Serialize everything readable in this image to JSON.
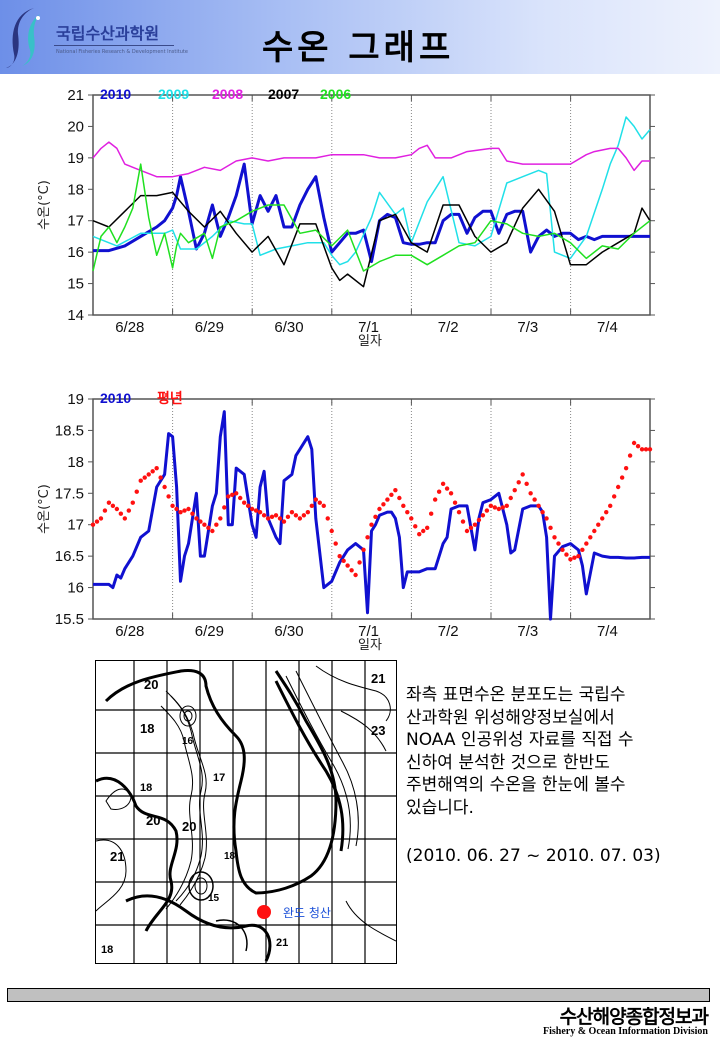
{
  "header": {
    "org_name": "국립수산과학원",
    "org_subtitle": "National Fisheries Research & Development Institute",
    "title": "수온 그래프"
  },
  "chart_data": [
    {
      "type": "line",
      "title": "",
      "xlabel": "일자",
      "ylabel": "수온(°C)",
      "ylim": [
        14,
        21
      ],
      "yticks": [
        "14",
        "15",
        "16",
        "17",
        "18",
        "19",
        "20",
        "21"
      ],
      "x_tick_labels": [
        "6/28",
        "6/29",
        "6/30",
        "7/1",
        "7/2",
        "7/3",
        "7/4"
      ],
      "xlim": [
        0,
        7
      ],
      "grid": "vertical dotted at day boundaries",
      "legend_position": "top",
      "series": [
        {
          "name": "2010",
          "color": "#1010d0",
          "width": 3,
          "x": [
            0,
            0.2,
            0.4,
            0.6,
            0.8,
            0.9,
            1.0,
            1.05,
            1.1,
            1.2,
            1.3,
            1.4,
            1.5,
            1.6,
            1.7,
            1.8,
            1.9,
            2.0,
            2.1,
            2.2,
            2.3,
            2.4,
            2.5,
            2.6,
            2.7,
            2.8,
            2.9,
            3.0,
            3.1,
            3.2,
            3.3,
            3.4,
            3.5,
            3.6,
            3.7,
            3.8,
            3.9,
            4.0,
            4.1,
            4.2,
            4.3,
            4.4,
            4.5,
            4.6,
            4.7,
            4.8,
            4.9,
            5.0,
            5.1,
            5.2,
            5.3,
            5.4,
            5.5,
            5.6,
            5.7,
            5.8,
            5.9,
            6.0,
            6.1,
            6.2,
            6.3,
            6.4,
            6.5,
            6.6,
            6.7,
            6.8,
            6.9,
            7.0
          ],
          "y": [
            16.05,
            16.05,
            16.2,
            16.5,
            16.8,
            17.0,
            17.4,
            17.8,
            18.4,
            17.3,
            16.1,
            16.6,
            17.5,
            16.5,
            17.1,
            17.8,
            18.8,
            16.9,
            17.8,
            17.3,
            17.8,
            16.8,
            16.8,
            17.5,
            18.0,
            18.4,
            17.1,
            16.0,
            16.3,
            16.6,
            16.6,
            16.7,
            15.7,
            17.0,
            17.2,
            17.1,
            16.3,
            16.25,
            16.25,
            16.3,
            16.3,
            17.0,
            17.2,
            17.2,
            16.6,
            17.1,
            17.3,
            17.3,
            16.6,
            17.2,
            17.3,
            17.3,
            16.0,
            16.5,
            16.7,
            16.5,
            16.6,
            16.6,
            16.4,
            16.5,
            16.4,
            16.5,
            16.5,
            16.5,
            16.5,
            16.5,
            16.5,
            16.5
          ]
        },
        {
          "name": "2009",
          "color": "#20e0e8",
          "width": 1.5,
          "x": [
            0,
            0.3,
            0.6,
            0.9,
            1.0,
            1.1,
            1.3,
            1.5,
            1.7,
            1.9,
            2.0,
            2.1,
            2.3,
            2.5,
            2.7,
            2.9,
            3.0,
            3.1,
            3.2,
            3.3,
            3.5,
            3.6,
            3.8,
            3.9,
            4.0,
            4.2,
            4.4,
            4.6,
            4.8,
            5.0,
            5.2,
            5.4,
            5.6,
            5.7,
            5.8,
            6.0,
            6.2,
            6.4,
            6.5,
            6.6,
            6.7,
            6.8,
            6.9,
            7.0
          ],
          "y": [
            16.5,
            16.2,
            16.6,
            16.6,
            16.7,
            16.1,
            16.1,
            16.5,
            17.0,
            16.9,
            16.9,
            15.9,
            16.1,
            16.2,
            16.3,
            16.3,
            15.9,
            15.6,
            15.7,
            16.0,
            17.1,
            17.9,
            17.2,
            17.4,
            16.3,
            17.6,
            18.4,
            16.3,
            16.2,
            16.5,
            18.2,
            18.4,
            18.6,
            18.5,
            16.0,
            15.8,
            16.5,
            18.0,
            18.8,
            19.4,
            20.3,
            20.0,
            19.6,
            19.9
          ]
        },
        {
          "name": "2008",
          "color": "#e020e0",
          "width": 1.5,
          "x": [
            0,
            0.1,
            0.2,
            0.3,
            0.4,
            0.5,
            0.6,
            0.8,
            1.0,
            1.2,
            1.4,
            1.6,
            1.8,
            2.0,
            2.2,
            2.4,
            2.6,
            2.8,
            3.0,
            3.2,
            3.4,
            3.6,
            3.8,
            4.0,
            4.1,
            4.2,
            4.3,
            4.5,
            4.7,
            5.0,
            5.1,
            5.2,
            5.4,
            5.6,
            5.8,
            6.0,
            6.2,
            6.3,
            6.5,
            6.6,
            6.7,
            6.8,
            6.9,
            7.0
          ],
          "y": [
            19.0,
            19.3,
            19.5,
            19.3,
            18.8,
            18.7,
            18.6,
            18.4,
            18.4,
            18.5,
            18.7,
            18.6,
            18.9,
            19.0,
            18.9,
            19.0,
            19.0,
            19.0,
            19.1,
            19.1,
            19.1,
            19.0,
            19.0,
            19.1,
            19.3,
            19.4,
            19.0,
            19.0,
            19.2,
            19.3,
            19.3,
            18.9,
            18.8,
            18.8,
            18.8,
            18.8,
            19.1,
            19.2,
            19.3,
            19.3,
            19.0,
            18.6,
            18.9,
            18.9
          ]
        },
        {
          "name": "2007",
          "color": "#000000",
          "width": 1.5,
          "x": [
            0,
            0.2,
            0.4,
            0.6,
            0.8,
            1.0,
            1.2,
            1.4,
            1.6,
            1.8,
            2.0,
            2.2,
            2.4,
            2.6,
            2.8,
            3.0,
            3.1,
            3.2,
            3.4,
            3.6,
            3.8,
            4.0,
            4.2,
            4.4,
            4.6,
            4.8,
            5.0,
            5.2,
            5.4,
            5.6,
            5.8,
            6.0,
            6.2,
            6.4,
            6.6,
            6.8,
            6.9,
            7.0
          ],
          "y": [
            17.0,
            16.8,
            17.3,
            17.8,
            17.8,
            17.9,
            17.3,
            16.8,
            17.3,
            16.6,
            16.0,
            16.5,
            15.6,
            16.9,
            16.9,
            15.5,
            15.1,
            15.3,
            14.9,
            17.0,
            17.2,
            16.3,
            16.0,
            17.5,
            17.5,
            16.5,
            16.0,
            16.3,
            17.4,
            18.0,
            17.3,
            15.6,
            15.6,
            16.0,
            16.3,
            16.6,
            17.4,
            17.0
          ]
        },
        {
          "name": "2006",
          "color": "#20e020",
          "width": 1.5,
          "x": [
            0,
            0.1,
            0.2,
            0.3,
            0.4,
            0.5,
            0.6,
            0.7,
            0.8,
            0.9,
            1.0,
            1.05,
            1.1,
            1.2,
            1.4,
            1.5,
            1.6,
            1.8,
            2.0,
            2.2,
            2.4,
            2.6,
            2.8,
            3.0,
            3.2,
            3.4,
            3.6,
            3.8,
            4.0,
            4.2,
            4.4,
            4.6,
            4.8,
            5.0,
            5.2,
            5.4,
            5.6,
            5.8,
            6.0,
            6.2,
            6.4,
            6.6,
            6.8,
            7.0
          ],
          "y": [
            15.4,
            16.5,
            16.8,
            16.3,
            16.8,
            17.4,
            18.8,
            17.1,
            15.9,
            16.6,
            15.5,
            16.2,
            16.6,
            16.3,
            16.6,
            15.8,
            16.8,
            17.0,
            17.3,
            17.5,
            17.5,
            16.6,
            16.7,
            16.2,
            16.7,
            15.4,
            15.7,
            15.9,
            15.9,
            15.6,
            15.9,
            16.2,
            16.3,
            17.0,
            16.9,
            16.6,
            16.5,
            16.6,
            16.3,
            15.8,
            16.2,
            16.1,
            16.6,
            17.0
          ]
        }
      ]
    },
    {
      "type": "line",
      "title": "",
      "xlabel": "일자",
      "ylabel": "수온(°C)",
      "ylim": [
        15.5,
        19
      ],
      "yticks": [
        "15.5",
        "16",
        "16.5",
        "17",
        "17.5",
        "18",
        "18.5",
        "19"
      ],
      "x_tick_labels": [
        "6/28",
        "6/29",
        "6/30",
        "7/1",
        "7/2",
        "7/3",
        "7/4"
      ],
      "xlim": [
        0,
        7
      ],
      "grid": "vertical dotted at day boundaries",
      "legend_position": "top",
      "series": [
        {
          "name": "2010",
          "color": "#1010d0",
          "style": "line",
          "x": [
            0,
            0.1,
            0.2,
            0.25,
            0.3,
            0.35,
            0.4,
            0.5,
            0.6,
            0.7,
            0.8,
            0.9,
            0.95,
            1.0,
            1.05,
            1.1,
            1.15,
            1.2,
            1.3,
            1.35,
            1.4,
            1.5,
            1.55,
            1.6,
            1.65,
            1.7,
            1.75,
            1.8,
            1.9,
            2.0,
            2.05,
            2.1,
            2.15,
            2.2,
            2.3,
            2.35,
            2.4,
            2.5,
            2.55,
            2.6,
            2.7,
            2.75,
            2.8,
            2.9,
            3.0,
            3.1,
            3.2,
            3.3,
            3.4,
            3.45,
            3.5,
            3.55,
            3.6,
            3.7,
            3.75,
            3.8,
            3.85,
            3.9,
            3.95,
            4.0,
            4.1,
            4.2,
            4.3,
            4.4,
            4.45,
            4.5,
            4.6,
            4.7,
            4.8,
            4.85,
            4.9,
            5.0,
            5.1,
            5.2,
            5.25,
            5.3,
            5.4,
            5.5,
            5.6,
            5.65,
            5.7,
            5.75,
            5.8,
            5.9,
            6.0,
            6.1,
            6.15,
            6.2,
            6.3,
            6.4,
            6.5,
            6.6,
            6.7,
            6.8,
            6.9,
            7.0
          ],
          "y": [
            16.05,
            16.05,
            16.05,
            16.0,
            16.2,
            16.15,
            16.3,
            16.5,
            16.8,
            16.9,
            17.6,
            17.8,
            18.45,
            18.4,
            17.6,
            16.1,
            16.5,
            16.7,
            17.5,
            16.5,
            16.5,
            17.3,
            17.5,
            18.4,
            18.8,
            17.0,
            17.0,
            17.9,
            17.8,
            17.0,
            16.8,
            17.6,
            17.85,
            17.1,
            16.8,
            16.7,
            17.7,
            17.8,
            18.1,
            18.2,
            18.4,
            18.2,
            17.1,
            16.0,
            16.1,
            16.4,
            16.6,
            16.7,
            16.6,
            15.6,
            16.9,
            17.0,
            17.15,
            17.2,
            17.2,
            17.1,
            16.8,
            16.0,
            16.25,
            16.25,
            16.25,
            16.3,
            16.3,
            16.7,
            16.8,
            17.25,
            17.3,
            17.3,
            16.6,
            17.1,
            17.35,
            17.4,
            17.5,
            17.0,
            16.55,
            16.6,
            17.25,
            17.3,
            17.3,
            17.2,
            16.8,
            15.5,
            16.5,
            16.65,
            16.7,
            16.6,
            16.35,
            15.9,
            16.55,
            16.5,
            16.48,
            16.48,
            16.47,
            16.47,
            16.48,
            16.48
          ]
        },
        {
          "name": "평년",
          "color": "#ff1010",
          "style": "dots",
          "x": [
            0,
            0.1,
            0.2,
            0.3,
            0.4,
            0.5,
            0.6,
            0.7,
            0.8,
            0.9,
            1.0,
            1.1,
            1.2,
            1.3,
            1.4,
            1.5,
            1.6,
            1.7,
            1.8,
            1.9,
            2.0,
            2.1,
            2.2,
            2.3,
            2.4,
            2.5,
            2.6,
            2.7,
            2.8,
            2.9,
            3.0,
            3.1,
            3.2,
            3.3,
            3.4,
            3.5,
            3.6,
            3.7,
            3.8,
            3.9,
            4.0,
            4.1,
            4.2,
            4.3,
            4.4,
            4.5,
            4.6,
            4.7,
            4.8,
            4.9,
            5.0,
            5.1,
            5.2,
            5.3,
            5.4,
            5.5,
            5.6,
            5.7,
            5.8,
            5.9,
            6.0,
            6.1,
            6.2,
            6.3,
            6.4,
            6.5,
            6.6,
            6.7,
            6.8,
            6.9,
            7.0
          ],
          "y": [
            17.0,
            17.1,
            17.35,
            17.25,
            17.1,
            17.35,
            17.7,
            17.8,
            17.9,
            17.6,
            17.3,
            17.2,
            17.25,
            17.1,
            17.0,
            16.9,
            17.1,
            17.45,
            17.5,
            17.35,
            17.25,
            17.2,
            17.1,
            17.15,
            17.05,
            17.2,
            17.1,
            17.2,
            17.4,
            17.3,
            16.9,
            16.5,
            16.35,
            16.2,
            16.6,
            17.0,
            17.25,
            17.4,
            17.55,
            17.3,
            17.1,
            16.85,
            16.95,
            17.4,
            17.65,
            17.5,
            17.2,
            16.9,
            17.0,
            17.15,
            17.3,
            17.25,
            17.3,
            17.55,
            17.8,
            17.5,
            17.3,
            17.1,
            16.8,
            16.6,
            16.45,
            16.5,
            16.7,
            16.9,
            17.1,
            17.3,
            17.6,
            17.9,
            18.3,
            18.2,
            18.2
          ]
        }
      ]
    }
  ],
  "map": {
    "contour_labels": [
      "20",
      "18",
      "16",
      "17",
      "18",
      "20",
      "20",
      "21",
      "18",
      "15",
      "21",
      "21",
      "23",
      "18"
    ],
    "station_label": "완도 청산",
    "station_color": "#ff1010"
  },
  "description": {
    "lines": [
      "좌측 표면수온 분포도는 국립수",
      "산과학원 위성해양정보실에서",
      "NOAA 인공위성 자료를 직접 수",
      "신하여 분석한 것으로  한반도",
      "주변해역의 수온을 한눈에 볼수",
      "있습니다."
    ],
    "period": "(2010. 06. 27 ~ 2010. 07. 03)"
  },
  "footer": {
    "division_ko": "수산해양종합정보과",
    "division_en": "Fishery & Ocean Information Division"
  }
}
